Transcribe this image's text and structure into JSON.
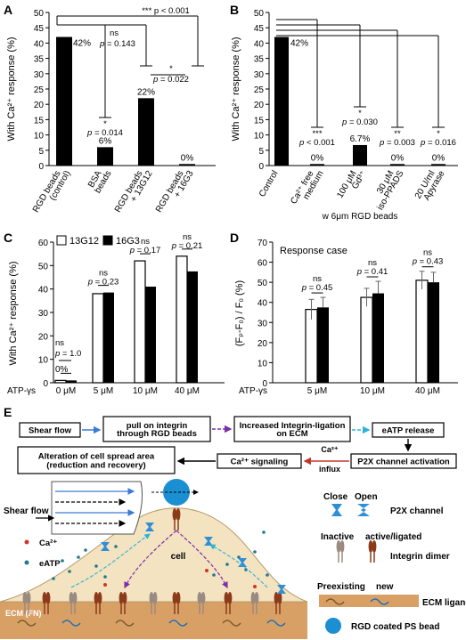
{
  "panels": {
    "A": {
      "letter": "A",
      "ylabel": "With Ca²⁺ response (%)",
      "yticks": [
        "0",
        "5",
        "10",
        "15",
        "20",
        "25",
        "30",
        "35",
        "40",
        "45",
        "50"
      ],
      "bars": [
        {
          "label1": "RGD beads",
          "label2": "(control)",
          "value": 42,
          "value_label": "42%"
        },
        {
          "label1": "BSA",
          "label2": "beads",
          "value": 6,
          "value_label": "6%"
        },
        {
          "label1": "RGD beads",
          "label2": "+ 13G12",
          "value": 22,
          "value_label": "22%"
        },
        {
          "label1": "RGD beads",
          "label2": "+ 16G3",
          "value": 0.5,
          "value_label": "0%"
        }
      ],
      "annotations": {
        "top_sig": "***",
        "top_p": "p < 0.001",
        "ns1": "ns",
        "p1": "p = 0.143",
        "sig2": "*",
        "p2": "p = 0.022",
        "sig3": "*",
        "p3": "p = 0.014"
      }
    },
    "B": {
      "letter": "B",
      "ylabel": "With Ca²⁺ response (%)",
      "yticks": [
        "0",
        "5",
        "10",
        "15",
        "20",
        "25",
        "30",
        "35",
        "40",
        "45",
        "50"
      ],
      "bars": [
        {
          "label1": "Control",
          "label2": "",
          "value": 42,
          "value_label": "42%",
          "sig": "",
          "p": ""
        },
        {
          "label1": "Ca²⁺ free",
          "label2": "medium",
          "value": 0.5,
          "value_label": "0%",
          "sig": "***",
          "p": "p < 0.001"
        },
        {
          "label1": "100 μM",
          "label2": "Gd³⁺",
          "value": 6.7,
          "value_label": "6.7%",
          "sig": "*",
          "p": "p = 0.030"
        },
        {
          "label1": "30 μM",
          "label2": "iso-PPADS",
          "value": 0.5,
          "value_label": "0%",
          "sig": "**",
          "p": "p = 0.003"
        },
        {
          "label1": "20 U/ml",
          "label2": "Apyrase",
          "value": 0.5,
          "value_label": "0%",
          "sig": "*",
          "p": "p = 0.016"
        }
      ],
      "xlabel": "w 6μm RGD beads"
    },
    "C": {
      "letter": "C",
      "ylabel": "With Ca²⁺ response (%)",
      "yticks": [
        "0",
        "10",
        "20",
        "30",
        "40",
        "50",
        "60"
      ],
      "legend": [
        "13G12",
        "16G3"
      ],
      "row_label": "ATP-γs",
      "groups": [
        {
          "label": "0 μM",
          "v13": 1,
          "v16": 1,
          "ns": "ns",
          "p": "p = 1.0",
          "pct": "0%"
        },
        {
          "label": "5 μM",
          "v13": 38,
          "v16": 38.5,
          "ns": "ns",
          "p": "p = 0.23"
        },
        {
          "label": "10 μM",
          "v13": 52,
          "v16": 41,
          "ns": "ns",
          "p": "p = 0.17"
        },
        {
          "label": "40 μM",
          "v13": 54,
          "v16": 47.5,
          "ns": "ns",
          "p": "p = 0.21"
        }
      ]
    },
    "D": {
      "letter": "D",
      "ylabel": "(Fₚ-F₀) / F₀ (%)",
      "yticks": [
        "0",
        "10",
        "20",
        "30",
        "40",
        "50",
        "60",
        "70"
      ],
      "inset_title": "Response case",
      "row_label": "ATP-γs",
      "groups": [
        {
          "label": "5 μM",
          "v13": 36.5,
          "e13": 5,
          "v16": 37.5,
          "e16": 5,
          "ns": "ns",
          "p": "p = 0.45"
        },
        {
          "label": "10 μM",
          "v13": 42.5,
          "e13": 4.5,
          "v16": 44.5,
          "e16": 6,
          "ns": "ns",
          "p": "p = 0.41"
        },
        {
          "label": "40 μM",
          "v13": 51,
          "e13": 4.5,
          "v16": 50,
          "e16": 5,
          "ns": "ns",
          "p": "p = 0.43"
        }
      ]
    },
    "E": {
      "letter": "E",
      "flow": {
        "shear_flow": "Shear flow",
        "pull": "pull on integrin through RGD beads",
        "ligation": "Increased Integrin-ligation on ECM",
        "eatp_release": "eATP release",
        "p2x": "P2X channel activation",
        "ca_influx_1": "Ca²⁺",
        "ca_influx_2": "influx",
        "ca_signaling": "Ca²⁺ signaling",
        "alteration": "Alteration of cell spread area (reduction and recovery)"
      },
      "diagram": {
        "shear_flow": "Shear flow",
        "ca": "Ca²⁺",
        "eatp": "eATP",
        "cell": "cell",
        "ecm": "ECM (FN)"
      },
      "legend": {
        "close": "Close",
        "open": "Open",
        "p2x": "P2X channel",
        "inactive": "Inactive",
        "active": "active/ligated",
        "integrin": "Integrin dimer",
        "preexisting": "Preexisting",
        "new": "new",
        "ecm_ligand": "ECM ligand",
        "bead": "RGD coated PS bead"
      }
    }
  },
  "colors": {
    "bar_black": "#000000",
    "bar_white": "#ffffff",
    "ecm": "#d9a066",
    "cell": "#f3e3c0",
    "bead": "#1a8fd1",
    "arrow_blue": "#3a7bd5",
    "arrow_purple": "#7b2fa8",
    "arrow_cyan": "#2bb3d9",
    "arrow_red": "#c0392b",
    "integrin_brown": "#8b3a1a",
    "integrin_grey": "#9a8a80"
  }
}
